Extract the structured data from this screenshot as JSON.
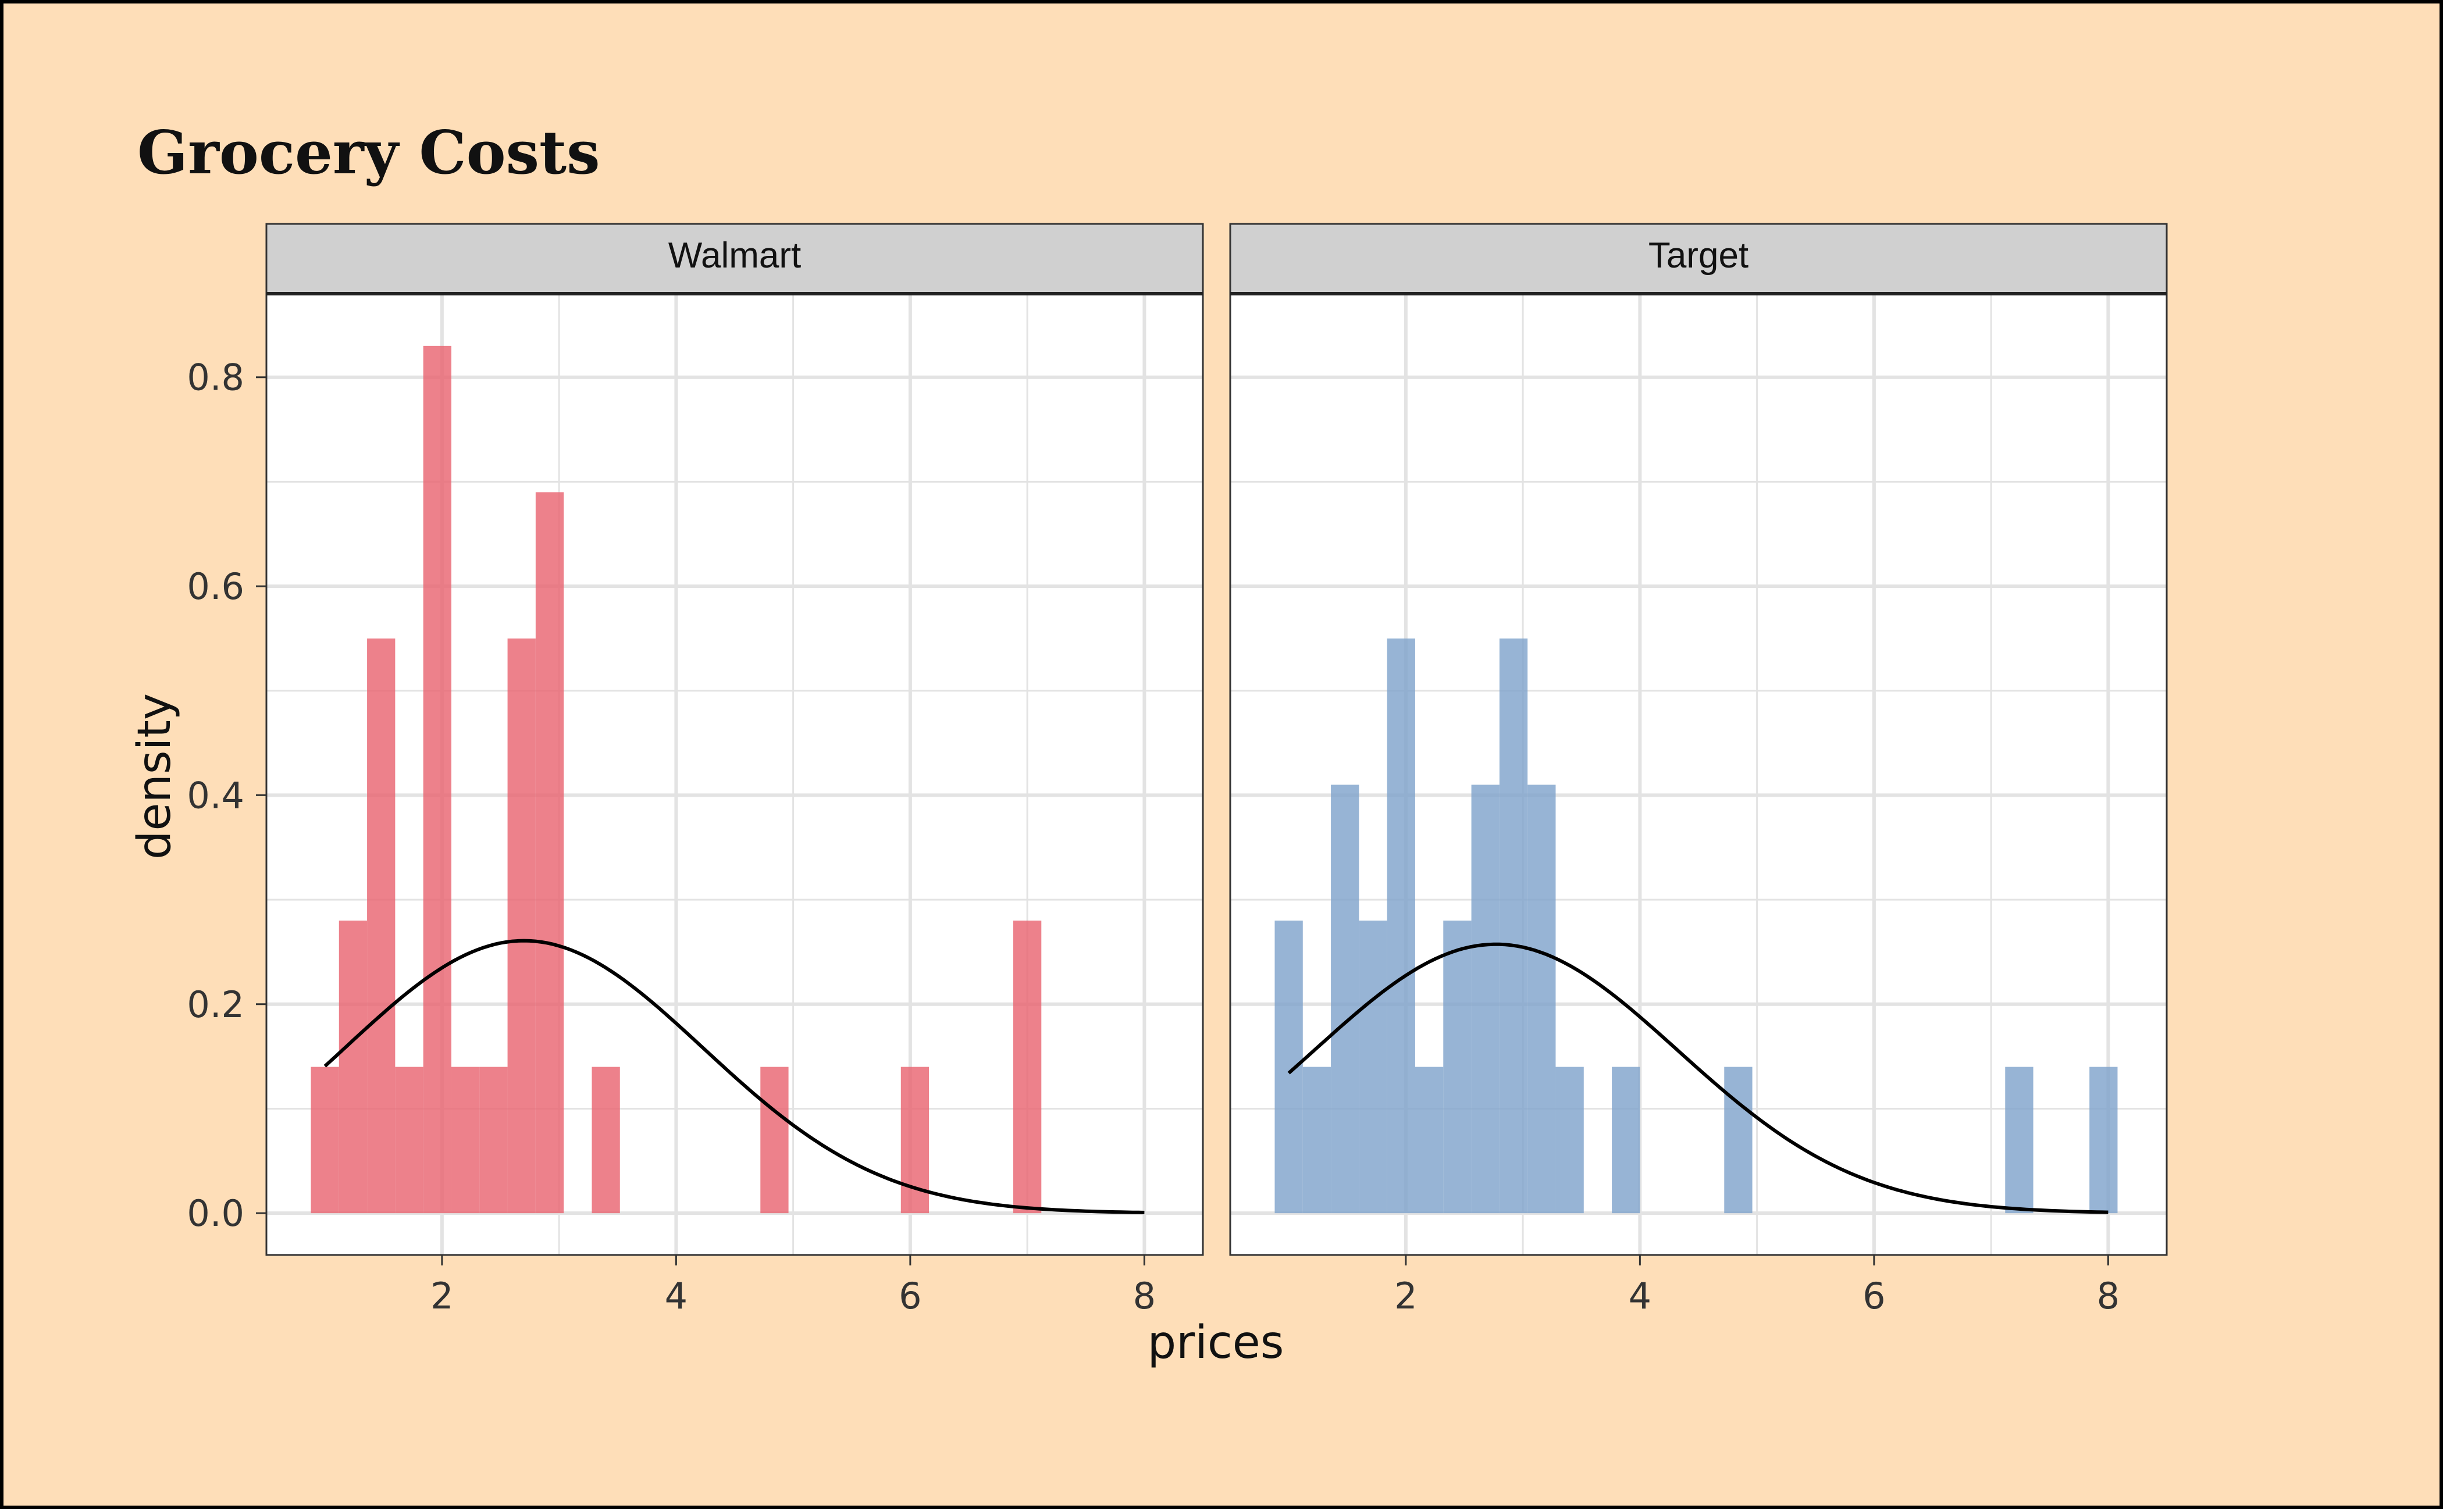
{
  "colors": {
    "background": "#FEDEB8",
    "border": "#000000",
    "panel_bg": "#FFFFFF",
    "strip_bg": "#D0D0D0",
    "grid": "#E3E3E3",
    "walmart_fill": "#E8616E",
    "target_fill": "#7DA1CB",
    "curve": "#000000",
    "text": "#111111",
    "tick_text": "#333333"
  },
  "chart_data": {
    "type": "bar",
    "title": "Grocery Costs",
    "xlabel": "prices",
    "ylabel": "density",
    "xlim": [
      0.5,
      8.5
    ],
    "ylim": [
      -0.04,
      0.88
    ],
    "x_ticks": [
      2,
      4,
      6,
      8
    ],
    "x_tick_labels": [
      "2",
      "4",
      "6",
      "8"
    ],
    "y_ticks": [
      0.0,
      0.2,
      0.4,
      0.6,
      0.8
    ],
    "y_tick_labels": [
      "0.0",
      "0.2",
      "0.4",
      "0.6",
      "0.8"
    ],
    "grid": true,
    "bin_width": 0.24,
    "panels": [
      {
        "name": "Walmart",
        "color": "#E8616E",
        "bins": [
          {
            "x": 1.0,
            "density": 0.14
          },
          {
            "x": 1.24,
            "density": 0.28
          },
          {
            "x": 1.48,
            "density": 0.55
          },
          {
            "x": 1.72,
            "density": 0.14
          },
          {
            "x": 1.96,
            "density": 0.83
          },
          {
            "x": 2.2,
            "density": 0.14
          },
          {
            "x": 2.44,
            "density": 0.14
          },
          {
            "x": 2.68,
            "density": 0.55
          },
          {
            "x": 2.92,
            "density": 0.69
          },
          {
            "x": 3.4,
            "density": 0.14
          },
          {
            "x": 4.84,
            "density": 0.14
          },
          {
            "x": 6.04,
            "density": 0.14
          },
          {
            "x": 7.0,
            "density": 0.28
          }
        ],
        "curve": {
          "mean": 2.7,
          "sd": 1.53,
          "from": 1.0,
          "to": 8.0
        }
      },
      {
        "name": "Target",
        "color": "#7DA1CB",
        "bins": [
          {
            "x": 1.0,
            "density": 0.28
          },
          {
            "x": 1.24,
            "density": 0.14
          },
          {
            "x": 1.48,
            "density": 0.41
          },
          {
            "x": 1.72,
            "density": 0.28
          },
          {
            "x": 1.96,
            "density": 0.55
          },
          {
            "x": 2.2,
            "density": 0.14
          },
          {
            "x": 2.44,
            "density": 0.28
          },
          {
            "x": 2.68,
            "density": 0.41
          },
          {
            "x": 2.92,
            "density": 0.55
          },
          {
            "x": 3.16,
            "density": 0.41
          },
          {
            "x": 3.4,
            "density": 0.14
          },
          {
            "x": 3.88,
            "density": 0.14
          },
          {
            "x": 4.84,
            "density": 0.14
          },
          {
            "x": 7.24,
            "density": 0.14
          },
          {
            "x": 7.96,
            "density": 0.14
          }
        ],
        "curve": {
          "mean": 2.77,
          "sd": 1.55,
          "from": 1.0,
          "to": 8.0
        }
      }
    ]
  }
}
